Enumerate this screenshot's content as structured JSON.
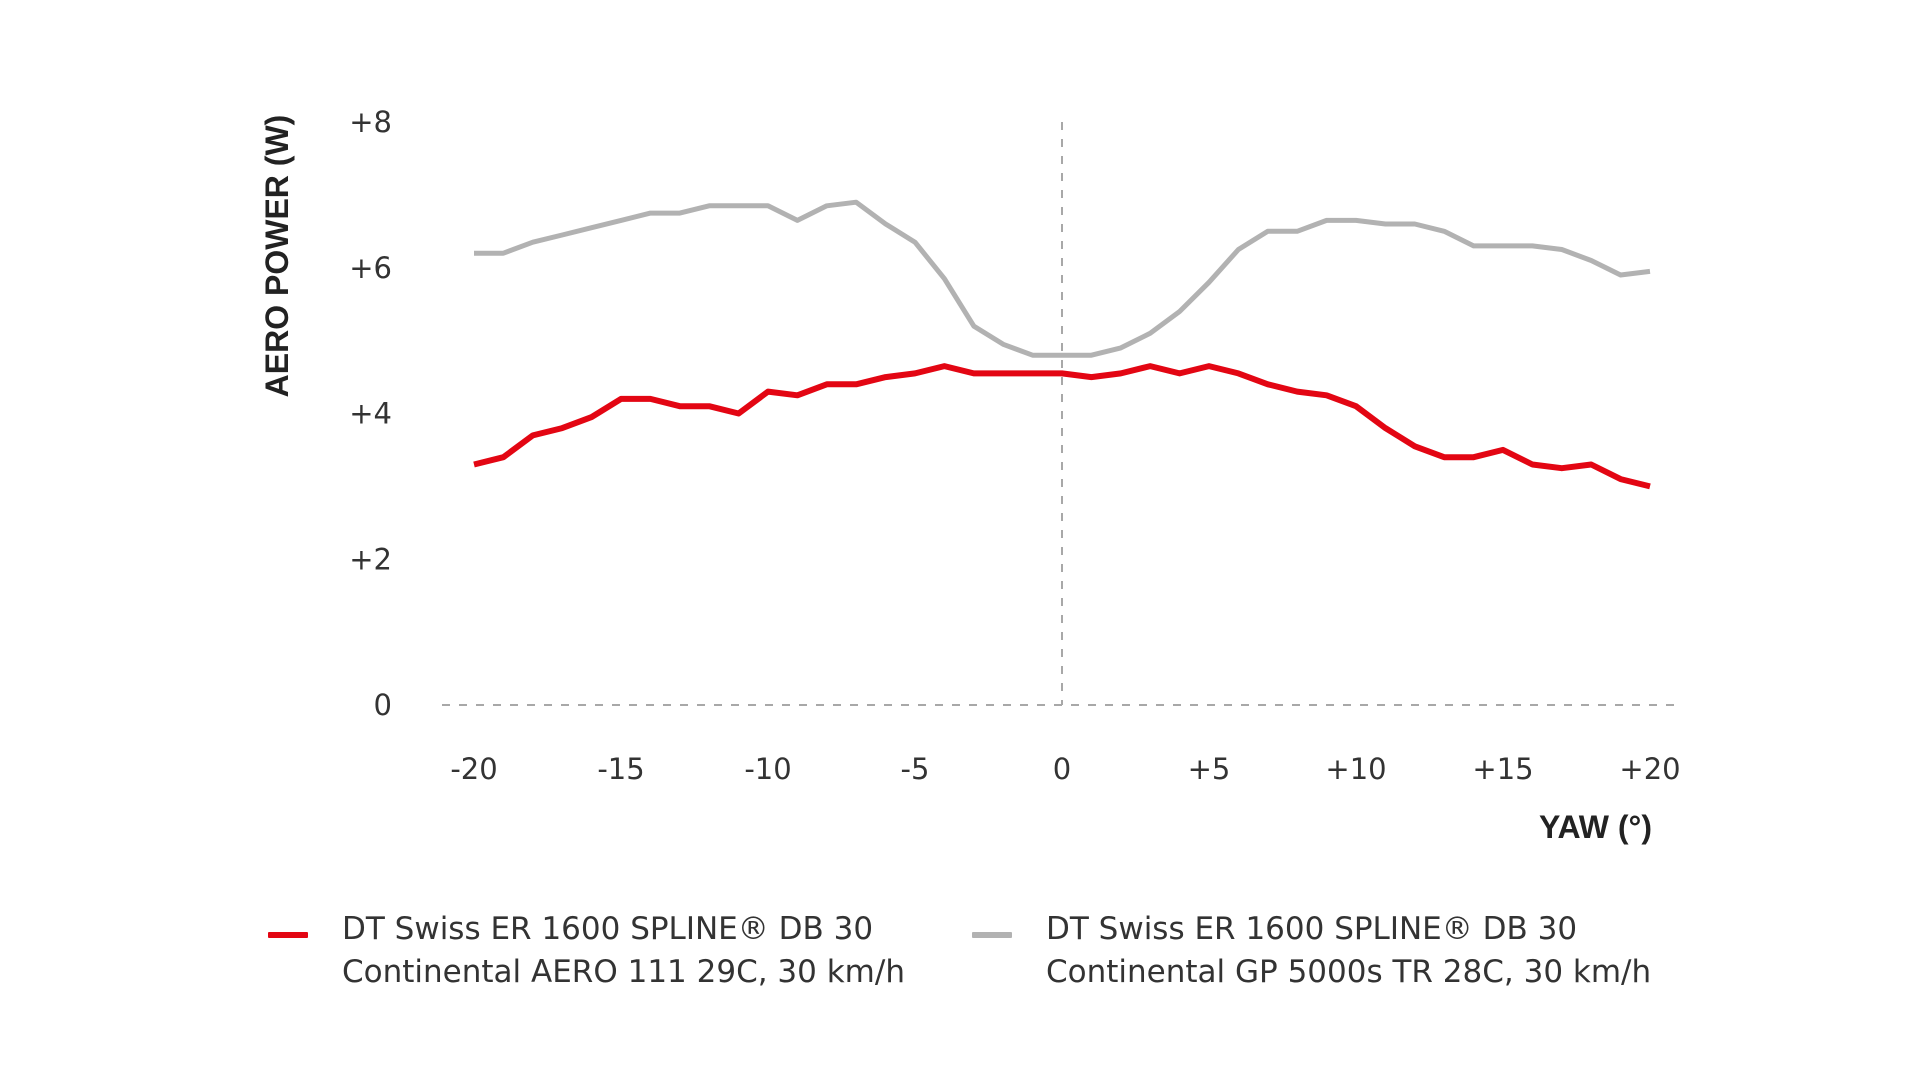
{
  "chart_data": {
    "type": "line",
    "ylabel": "AERO POWER (W)",
    "xlabel": "YAW (°)",
    "xlim": [
      -20,
      20
    ],
    "ylim": [
      0,
      8
    ],
    "x_ticks": [
      -20,
      -15,
      -10,
      -5,
      0,
      5,
      10,
      15,
      20
    ],
    "x_tick_labels": [
      "-20",
      "-15",
      "-10",
      "-5",
      "0",
      "+5",
      "+10",
      "+15",
      "+20"
    ],
    "y_ticks": [
      0,
      2,
      4,
      6,
      8
    ],
    "y_tick_labels": [
      "0",
      "+2",
      "+4",
      "+6",
      "+8"
    ],
    "reference_lines": [
      "x = 0 (dashed)",
      "y = 0 (dashed)"
    ],
    "x": [
      -20,
      -19,
      -18,
      -17,
      -16,
      -15,
      -14,
      -13,
      -12,
      -11,
      -10,
      -9,
      -8,
      -7,
      -6,
      -5,
      -4,
      -3,
      -2,
      -1,
      0,
      1,
      2,
      3,
      4,
      5,
      6,
      7,
      8,
      9,
      10,
      11,
      12,
      13,
      14,
      15,
      16,
      17,
      18,
      19,
      20
    ],
    "series": [
      {
        "name": "DT Swiss ER 1600 SPLINE® DB 30 / Continental AERO 111 29C, 30 km/h",
        "legend_line1": "DT Swiss ER 1600 SPLINE® DB 30",
        "legend_line2": "Continental AERO 111 29C, 30 km/h",
        "color": "#e30613",
        "values": [
          3.3,
          3.4,
          3.7,
          3.8,
          3.95,
          4.2,
          4.2,
          4.1,
          4.1,
          4.0,
          4.3,
          4.25,
          4.4,
          4.4,
          4.5,
          4.55,
          4.65,
          4.55,
          4.55,
          4.55,
          4.55,
          4.5,
          4.55,
          4.65,
          4.55,
          4.65,
          4.55,
          4.4,
          4.3,
          4.25,
          4.1,
          3.8,
          3.55,
          3.4,
          3.4,
          3.5,
          3.3,
          3.25,
          3.3,
          3.1,
          3.0
        ]
      },
      {
        "name": "DT Swiss ER 1600 SPLINE® DB 30 / Continental GP 5000s TR 28C, 30 km/h",
        "legend_line1": "DT Swiss ER 1600 SPLINE® DB 30",
        "legend_line2": "Continental GP 5000s TR 28C, 30 km/h",
        "color": "#b2b2b2",
        "values": [
          6.2,
          6.2,
          6.35,
          6.45,
          6.55,
          6.65,
          6.75,
          6.75,
          6.85,
          6.85,
          6.85,
          6.65,
          6.85,
          6.9,
          6.6,
          6.35,
          5.85,
          5.2,
          4.95,
          4.8,
          4.8,
          4.8,
          4.9,
          5.1,
          5.4,
          5.8,
          6.25,
          6.5,
          6.5,
          6.65,
          6.65,
          6.6,
          6.6,
          6.5,
          6.3,
          6.3,
          6.3,
          6.25,
          6.1,
          5.9,
          5.95
        ]
      }
    ]
  }
}
